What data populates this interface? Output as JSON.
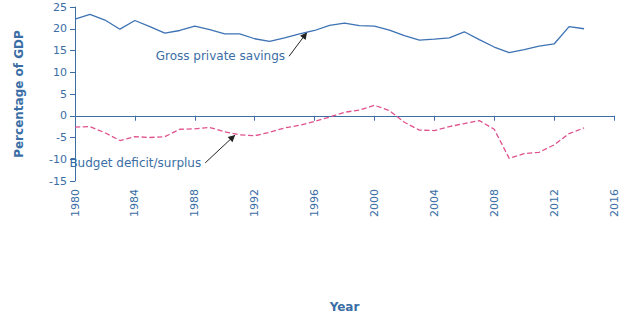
{
  "chart_data": {
    "type": "line",
    "x_label": "Year",
    "y_label": "Percentage of GDP",
    "x": [
      1980,
      1981,
      1982,
      1983,
      1984,
      1985,
      1986,
      1987,
      1988,
      1989,
      1990,
      1991,
      1992,
      1993,
      1994,
      1995,
      1996,
      1997,
      1998,
      1999,
      2000,
      2001,
      2002,
      2003,
      2004,
      2005,
      2006,
      2007,
      2008,
      2009,
      2010,
      2011,
      2012,
      2013,
      2014
    ],
    "series": [
      {
        "name": "Gross private savings",
        "color": "#3d73b4",
        "line_style": "solid",
        "marker": "none",
        "values": [
          22.2,
          23.3,
          22.0,
          19.9,
          21.9,
          20.5,
          19.0,
          19.6,
          20.6,
          19.8,
          18.8,
          18.8,
          17.7,
          17.1,
          17.9,
          18.8,
          19.6,
          20.8,
          21.3,
          20.7,
          20.6,
          19.7,
          18.4,
          17.4,
          17.6,
          17.9,
          19.3,
          17.5,
          15.8,
          14.5,
          15.2,
          16.0,
          16.5,
          20.5,
          20.0
        ]
      },
      {
        "name": "Budget deficit/surplus",
        "color": "#e0518d",
        "line_style": "dashed",
        "marker": "none",
        "values": [
          -2.6,
          -2.5,
          -3.9,
          -5.7,
          -4.8,
          -5.0,
          -4.8,
          -3.1,
          -3.0,
          -2.7,
          -3.7,
          -4.4,
          -4.6,
          -3.8,
          -2.8,
          -2.2,
          -1.3,
          -0.3,
          0.8,
          1.3,
          2.4,
          1.2,
          -1.5,
          -3.3,
          -3.4,
          -2.5,
          -1.8,
          -1.1,
          -3.1,
          -9.8,
          -8.7,
          -8.4,
          -6.7,
          -4.1,
          -2.8
        ]
      }
    ],
    "xlim": [
      1980,
      2016
    ],
    "xticks": [
      1980,
      1984,
      1988,
      1992,
      1996,
      2000,
      2004,
      2008,
      2012,
      2016
    ],
    "ylim": [
      -15,
      25
    ],
    "yticks": [
      -15,
      -10,
      -5,
      0,
      5,
      10,
      15,
      20,
      25
    ],
    "grid": false,
    "annotations": [
      {
        "text": "Gross private savings",
        "x": 1995.5,
        "y": 19.2
      },
      {
        "text": "Budget deficit/surplus",
        "x": 1990.7,
        "y": -4.4
      }
    ]
  }
}
